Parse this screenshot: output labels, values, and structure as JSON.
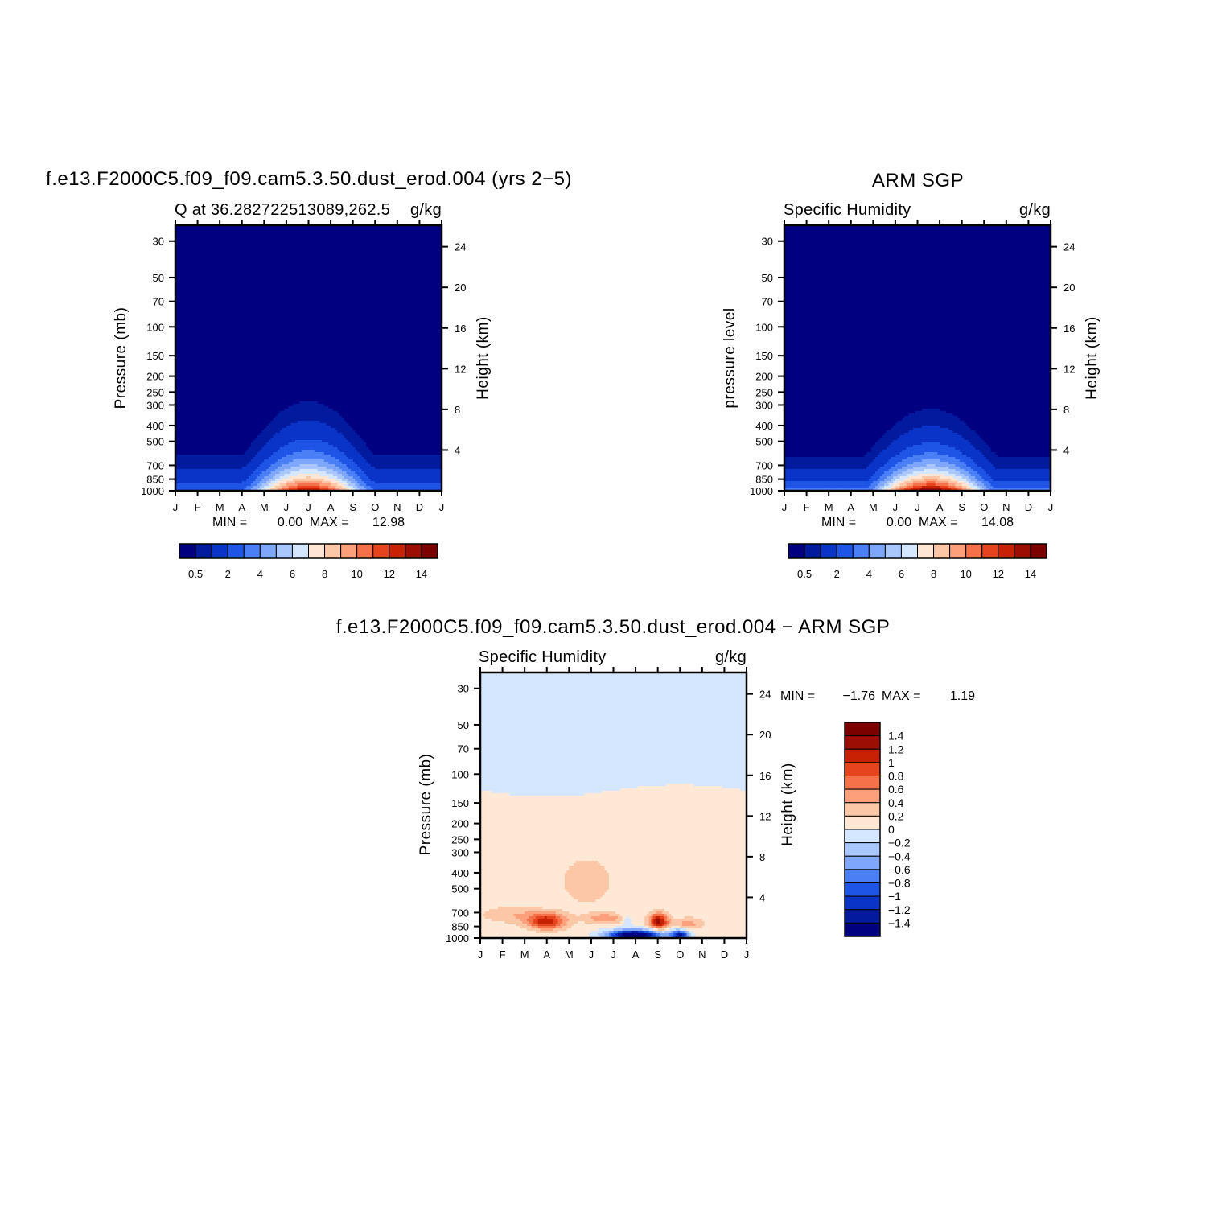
{
  "figure": {
    "diff_title": "f.e13.F2000C5.f09_f09.cam5.3.50.dust_erod.004 − ARM SGP"
  },
  "colors": {
    "abs_levels": [
      "#000080",
      "#021a9e",
      "#0a34c8",
      "#1f55e6",
      "#4a7ff5",
      "#7ea6fb",
      "#a9c6fd",
      "#d5e7ff",
      "#ffe5d3",
      "#fcc7a7",
      "#fba07b",
      "#f4714a",
      "#e6441f",
      "#c82204",
      "#9c0e04",
      "#7b0000"
    ],
    "diff_levels": [
      "#7b0000",
      "#9c0e04",
      "#c82204",
      "#e6441f",
      "#f4714a",
      "#fba07b",
      "#fcc7a7",
      "#ffe9d6",
      "#d5e7ff",
      "#a9c6fd",
      "#7ea6fb",
      "#4a7ff5",
      "#1f55e6",
      "#0a34c8",
      "#021a9e",
      "#000080"
    ]
  },
  "axis_ticks": {
    "months": [
      "J",
      "F",
      "M",
      "A",
      "M",
      "J",
      "J",
      "A",
      "S",
      "O",
      "N",
      "D",
      "J"
    ],
    "pressure": [
      30,
      50,
      70,
      100,
      150,
      200,
      250,
      300,
      400,
      500,
      700,
      850,
      1000
    ],
    "height_km": [
      24,
      20,
      16,
      12,
      8,
      4
    ]
  },
  "colorbar_abs": {
    "labels": [
      "0.5",
      "2",
      "4",
      "6",
      "8",
      "10",
      "12",
      "14"
    ]
  },
  "colorbar_diff": {
    "labels": [
      "1.4",
      "1.2",
      "1",
      "0.8",
      "0.6",
      "0.4",
      "0.2",
      "0",
      "−0.2",
      "−0.4",
      "−0.6",
      "−0.8",
      "−1",
      "−1.2",
      "−1.4"
    ]
  },
  "panels": {
    "model": {
      "title": "f.e13.F2000C5.f09_f09.cam5.3.50.dust_erod.004 (yrs 2−5)",
      "subtitle_left": "Q at 36.282722513089,262.5",
      "subtitle_right": "g/kg",
      "ylabel_left": "Pressure (mb)",
      "ylabel_right": "Height (km)",
      "min_label": "MIN =",
      "min_value": "0.00",
      "max_label": "MAX =",
      "max_value": "12.98"
    },
    "obs": {
      "title": "ARM SGP",
      "subtitle_left": "Specific Humidity",
      "subtitle_right": "g/kg",
      "ylabel_left": "pressure level",
      "ylabel_right": "Height (km)",
      "min_label": "MIN =",
      "min_value": "0.00",
      "max_label": "MAX =",
      "max_value": "14.08"
    },
    "diff": {
      "subtitle_left": "Specific Humidity",
      "subtitle_right": "g/kg",
      "ylabel_left": "Pressure (mb)",
      "ylabel_right": "Height (km)",
      "min_label": "MIN =",
      "min_value": "−1.76",
      "max_label": "MAX =",
      "max_value": "1.19"
    }
  },
  "chart_data": [
    {
      "type": "heatmap",
      "title": "f.e13.F2000C5.f09_f09.cam5.3.50.dust_erod.004 (yrs 2−5)",
      "subtitle": "Q at 36.282722513089,262.5",
      "units": "g/kg",
      "x": [
        "J",
        "F",
        "M",
        "A",
        "M",
        "J",
        "J",
        "A",
        "S",
        "O",
        "N",
        "D",
        "J"
      ],
      "y_pressure_mb": [
        1000,
        850,
        700,
        500,
        400,
        300,
        200,
        100,
        50,
        30
      ],
      "xlabel": "",
      "ylabel": "Pressure (mb)",
      "ylabel_right": "Height (km)",
      "ylim": [
        1000,
        25
      ],
      "levels": [
        0.5,
        1,
        2,
        3,
        4,
        5,
        6,
        7,
        8,
        9,
        10,
        11,
        12,
        13,
        14
      ],
      "peak_value_estimate": 12.98,
      "peak_location": {
        "month": "J",
        "pressure_mb": 900
      },
      "min": 0.0,
      "max": 12.98
    },
    {
      "type": "heatmap",
      "title": "ARM SGP",
      "subtitle": "Specific Humidity",
      "units": "g/kg",
      "x": [
        "J",
        "F",
        "M",
        "A",
        "M",
        "J",
        "J",
        "A",
        "S",
        "O",
        "N",
        "D",
        "J"
      ],
      "y_pressure_mb": [
        1000,
        850,
        700,
        500,
        400,
        300,
        200,
        100,
        50,
        30
      ],
      "xlabel": "",
      "ylabel": "pressure level",
      "ylabel_right": "Height (km)",
      "ylim": [
        1000,
        25
      ],
      "levels": [
        0.5,
        1,
        2,
        3,
        4,
        5,
        6,
        7,
        8,
        9,
        10,
        11,
        12,
        13,
        14
      ],
      "peak_value_estimate": 14.08,
      "peak_location": {
        "month": "J",
        "pressure_mb": 950
      },
      "min": 0.0,
      "max": 14.08
    },
    {
      "type": "heatmap",
      "title": "f.e13.F2000C5.f09_f09.cam5.3.50.dust_erod.004 − ARM SGP",
      "subtitle": "Specific Humidity",
      "units": "g/kg",
      "x": [
        "J",
        "F",
        "M",
        "A",
        "M",
        "J",
        "J",
        "A",
        "S",
        "O",
        "N",
        "D",
        "J"
      ],
      "xlabel": "",
      "ylabel": "Pressure (mb)",
      "ylabel_right": "Height (km)",
      "ylim": [
        1000,
        25
      ],
      "levels": [
        -1.4,
        -1.2,
        -1,
        -0.8,
        -0.6,
        -0.4,
        -0.2,
        0,
        0.2,
        0.4,
        0.6,
        0.8,
        1,
        1.2,
        1.4
      ],
      "features": [
        {
          "sign": "positive",
          "month": "A",
          "pressure_mb": 800,
          "value": 1.0
        },
        {
          "sign": "positive",
          "month": "S",
          "pressure_mb": 800,
          "value": 1.19
        },
        {
          "sign": "negative",
          "month": "A",
          "pressure_mb": 950,
          "value": -1.76
        },
        {
          "sign": "negative",
          "month": "O",
          "pressure_mb": 950,
          "value": -1.2
        },
        {
          "sign": "negative",
          "upper_troposphere_above_mb": 130,
          "value": -0.1
        }
      ],
      "min": -1.76,
      "max": 1.19
    }
  ]
}
